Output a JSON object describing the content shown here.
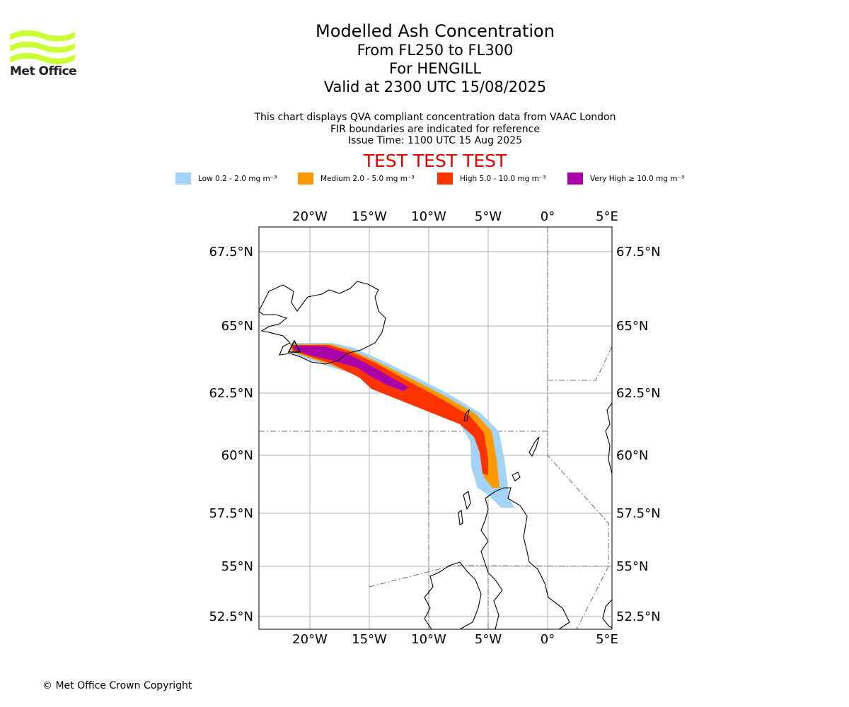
{
  "branding": {
    "logo_text": "Met Office",
    "logo_color": "#ccff33"
  },
  "title": {
    "line1": "Modelled Ash Concentration",
    "line2": "From FL250 to FL300",
    "line3": "For HENGILL",
    "line4": "Valid at 2300 UTC 15/08/2025"
  },
  "subtitle": {
    "line1": "This chart displays QVA compliant concentration data from VAAC London",
    "line2": "FIR boundaries are indicated for reference",
    "line3": "Issue Time: 1100 UTC 15 Aug 2025"
  },
  "test_banner": "TEST TEST TEST",
  "legend": [
    {
      "label": "Low 0.2 - 2.0 mg m⁻³",
      "color": "#a3d3f7"
    },
    {
      "label": "Medium 2.0 - 5.0 mg m⁻³",
      "color": "#ff9900"
    },
    {
      "label": "High 5.0 - 10.0 mg m⁻³",
      "color": "#ff3300"
    },
    {
      "label": "Very High  ≥  10.0 mg m⁻³",
      "color": "#aa00aa"
    }
  ],
  "map": {
    "lon_ticks": [
      "20°W",
      "15°W",
      "10°W",
      "5°W",
      "0°",
      "5°E"
    ],
    "lat_ticks": [
      "67.5°N",
      "65°N",
      "62.5°N",
      "60°N",
      "57.5°N",
      "55°N",
      "52.5°N"
    ]
  },
  "copyright": "© Met Office Crown Copyright"
}
